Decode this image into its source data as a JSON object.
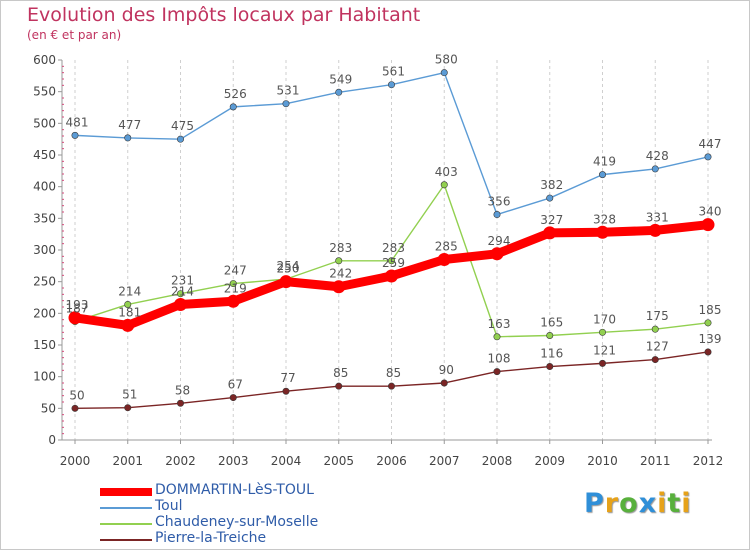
{
  "header": {
    "title": "Evolution des Impôts locaux par Habitant",
    "subtitle": "(en € et par an)"
  },
  "logo": {
    "text": "Proxiti",
    "colors": [
      "#2f8fd8",
      "#e6a21a",
      "#58b03c",
      "#2f8fd8",
      "#e6a21a",
      "#58b03c",
      "#e6a21a"
    ]
  },
  "chart_data": {
    "type": "line",
    "title": "Evolution des Impôts locaux par Habitant",
    "subtitle": "(en € et par an)",
    "xlabel": "",
    "ylabel": "",
    "x": [
      2000,
      2001,
      2002,
      2003,
      2004,
      2005,
      2006,
      2007,
      2008,
      2009,
      2010,
      2011,
      2012
    ],
    "ylim": [
      0,
      600
    ],
    "yticks": [
      0,
      50,
      100,
      150,
      200,
      250,
      300,
      350,
      400,
      450,
      500,
      550,
      600
    ],
    "grid": "vertical",
    "legend_position": "bottom-left",
    "series": [
      {
        "name": "DOMMARTIN-LèS-TOUL",
        "color": "#ff0000",
        "emphasis": true,
        "values": [
          193,
          181,
          214,
          219,
          250,
          242,
          259,
          285,
          294,
          327,
          328,
          331,
          340
        ]
      },
      {
        "name": "Toul",
        "color": "#5b9bd5",
        "emphasis": false,
        "values": [
          481,
          477,
          475,
          526,
          531,
          549,
          561,
          580,
          356,
          382,
          419,
          428,
          447
        ]
      },
      {
        "name": "Chaudeney-sur-Moselle",
        "color": "#92d050",
        "emphasis": false,
        "values": [
          187,
          214,
          231,
          247,
          254,
          283,
          283,
          403,
          163,
          165,
          170,
          175,
          185
        ]
      },
      {
        "name": "Pierre-la-Treiche",
        "color": "#7b2525",
        "emphasis": false,
        "values": [
          50,
          51,
          58,
          67,
          77,
          85,
          85,
          90,
          108,
          116,
          121,
          127,
          139
        ]
      }
    ]
  }
}
